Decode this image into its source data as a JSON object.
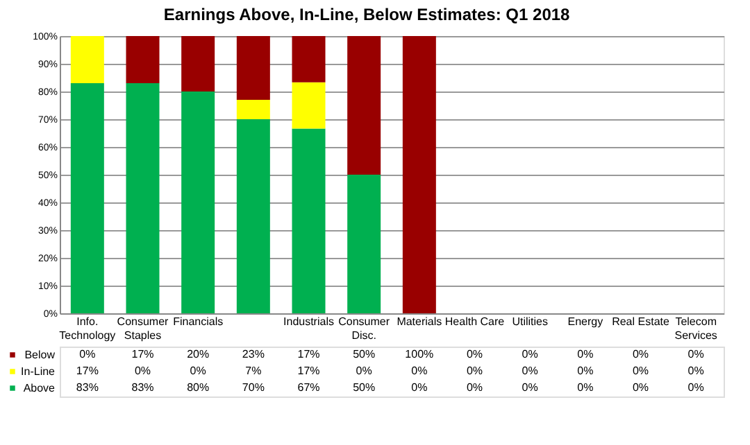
{
  "chart_data": {
    "type": "bar",
    "title": "Earnings Above, In-Line, Below Estimates: Q1 2018",
    "categories": [
      "Info. Technology",
      "Consumer Staples",
      "Financials",
      null,
      "Industrials",
      "Consumer Disc.",
      "Materials",
      "Health Care",
      "Utilities",
      "Energy",
      "Real Estate",
      "Telecom Services"
    ],
    "stacked": true,
    "series": [
      {
        "name": "Above",
        "color": "#00b050",
        "values": [
          83,
          83,
          80,
          70,
          66.6,
          50,
          0,
          0,
          0,
          0,
          0,
          0
        ],
        "value_labels": [
          "83%",
          "83%",
          "80%",
          "70%",
          "67%",
          "50%",
          "0%",
          "0%",
          "0%",
          "0%",
          "0%",
          "0%"
        ]
      },
      {
        "name": "In-Line",
        "color": "#ffff00",
        "values": [
          17,
          0,
          0,
          7,
          16.7,
          0,
          0,
          0,
          0,
          0,
          0,
          0
        ],
        "value_labels": [
          "17%",
          "0%",
          "0%",
          "7%",
          "17%",
          "0%",
          "0%",
          "0%",
          "0%",
          "0%",
          "0%",
          "0%"
        ]
      },
      {
        "name": "Below",
        "color": "#990000",
        "values": [
          0,
          17,
          20,
          23,
          16.7,
          50,
          100,
          0,
          0,
          0,
          0,
          0
        ],
        "value_labels": [
          "0%",
          "17%",
          "20%",
          "23%",
          "17%",
          "50%",
          "100%",
          "0%",
          "0%",
          "0%",
          "0%",
          "0%"
        ]
      }
    ],
    "ylim": [
      0,
      100
    ],
    "yticks": [
      {
        "value": 0,
        "label": "0%"
      },
      {
        "value": 10,
        "label": "10%"
      },
      {
        "value": 20,
        "label": "20%"
      },
      {
        "value": 30,
        "label": "30%"
      },
      {
        "value": 40,
        "label": "40%"
      },
      {
        "value": 50,
        "label": "50%"
      },
      {
        "value": 60,
        "label": "60%"
      },
      {
        "value": 70,
        "label": "70%"
      },
      {
        "value": 80,
        "label": "80%"
      },
      {
        "value": 90,
        "label": "90%"
      },
      {
        "value": 100,
        "label": "100%"
      }
    ],
    "grid": "y",
    "legend": "bottom left"
  }
}
